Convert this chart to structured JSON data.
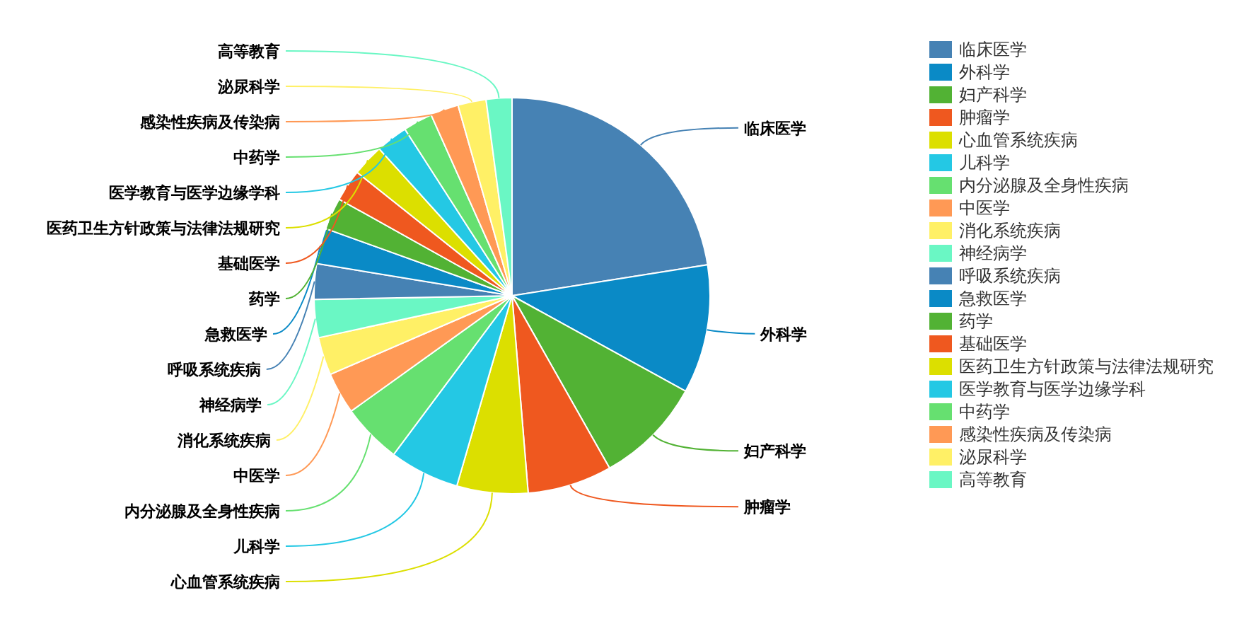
{
  "chart_data": {
    "type": "pie",
    "legend": "right",
    "categories": [
      "临床医学",
      "外科学",
      "妇产科学",
      "肿瘤学",
      "心血管系统疾病",
      "儿科学",
      "内分泌腺及全身性疾病",
      "中医学",
      "消化系统疾病",
      "神经病学",
      "呼吸系统疾病",
      "急救医学",
      "药学",
      "基础医学",
      "医药卫生方针政策与法律法规研究",
      "医学教育与医学边缘学科",
      "中药学",
      "感染性疾病及传染病",
      "泌尿科学",
      "高等教育"
    ],
    "values": [
      22.5,
      10.5,
      8.8,
      6.9,
      5.8,
      5.7,
      4.9,
      3.4,
      3.1,
      3.1,
      2.9,
      2.9,
      2.6,
      2.6,
      2.6,
      2.6,
      2.4,
      2.3,
      2.3,
      2.1
    ],
    "colors": [
      "#4682b4",
      "#0a8ac6",
      "#52b234",
      "#ef581f",
      "#dcdf00",
      "#24c8e4",
      "#66e070",
      "#ff9955",
      "#fff066",
      "#6af7c4",
      "#4682b4",
      "#0a8ac6",
      "#52b234",
      "#ef581f",
      "#dcdf00",
      "#24c8e4",
      "#66e070",
      "#ff9955",
      "#fff066",
      "#6af7c4"
    ]
  }
}
